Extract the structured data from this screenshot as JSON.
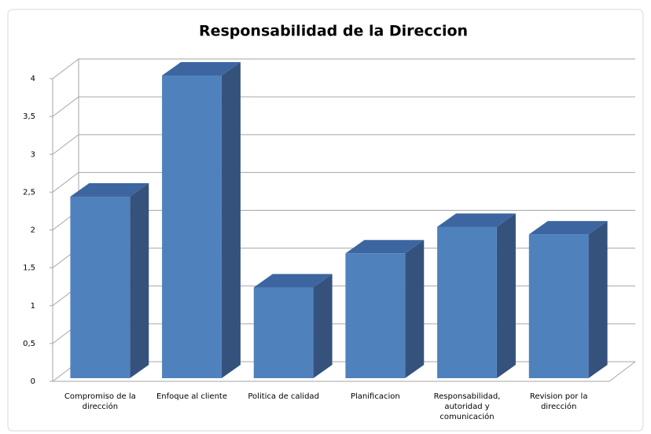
{
  "chart_data": {
    "type": "bar",
    "title": "Responsabilidad de la Direccion",
    "categories": [
      "Compromiso de la dirección",
      "Enfoque al cliente",
      "Politica de calidad",
      "Planificacion",
      "Responsabilidad, autoridad y comunicación",
      "Revision por la dirección"
    ],
    "values": [
      2.4,
      4,
      1.2,
      1.65,
      2,
      1.9
    ],
    "color": "#4f81bd",
    "ylim": [
      0,
      4
    ],
    "yticks": [
      0,
      {
        "value": 0.5,
        "label": "0,5"
      },
      1,
      {
        "value": 1.5,
        "label": "1,5"
      },
      2,
      {
        "value": 2.5,
        "label": "2,5"
      },
      3,
      {
        "value": 3.5,
        "label": "3,5"
      },
      4
    ],
    "grid": true
  }
}
